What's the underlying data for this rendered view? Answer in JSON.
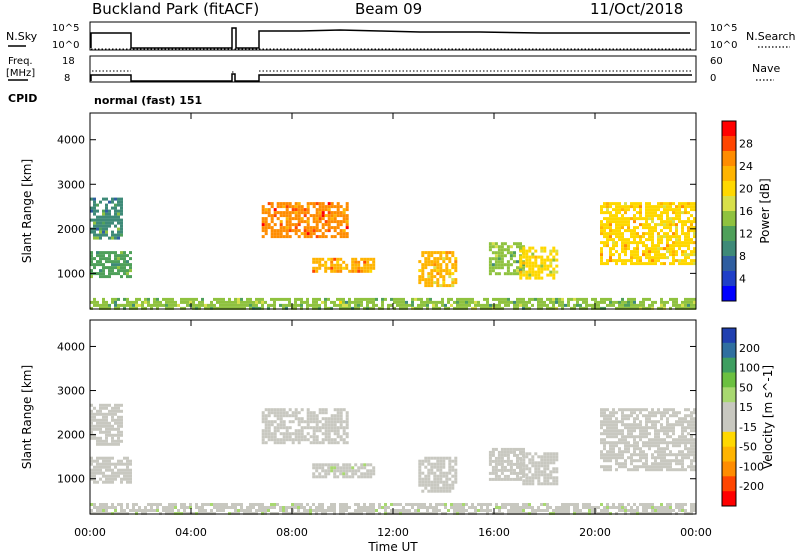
{
  "header": {
    "station": "Buckland Park (fitACF)",
    "beam": "Beam 09",
    "date": "11/Oct/2018"
  },
  "top_panels": {
    "nsky_label": "N.Sky",
    "nsky_ticks": [
      "10^5",
      "10^0"
    ],
    "nsearch_label": "N.Search",
    "nsearch_ticks": [
      "10^5",
      "10^0"
    ],
    "freq_label": "Freq.",
    "freq_unit": "[MHz]",
    "freq_ticks": [
      "18",
      "8"
    ],
    "nave_label": "Nave",
    "nave_ticks": [
      "60",
      "0"
    ],
    "cpid_label": "CPID",
    "cpid_text": "normal (fast) 151"
  },
  "chart_data": [
    {
      "type": "heatmap",
      "parameter": "Power",
      "ylabel": "Slant Range [km]",
      "colorbar_label": "Power [dB]",
      "colorbar_ticks": [
        "28",
        "24",
        "20",
        "16",
        "12",
        "8",
        "4"
      ],
      "colorbar_colors": [
        "#ff0000",
        "#ff4500",
        "#ff8c00",
        "#ffb400",
        "#ffd800",
        "#d8e04a",
        "#8fc23f",
        "#4fa05a",
        "#3e8a78",
        "#2f5ea0",
        "#1f3fc8",
        "#0000ff"
      ],
      "y_ticks": [
        "4000",
        "3000",
        "2000",
        "1000"
      ],
      "ylim": [
        200,
        4600
      ],
      "xlim": [
        0,
        24
      ],
      "gaps_hours": [
        [
          1.6,
          5.7
        ],
        [
          5.9,
          6.8
        ]
      ],
      "echo_regions": [
        {
          "t0": 0.0,
          "t1": 1.6,
          "r0": 900,
          "r1": 1500,
          "level": 11
        },
        {
          "t0": 0.0,
          "t1": 1.3,
          "r0": 1800,
          "r1": 2700,
          "level": 10
        },
        {
          "t0": 6.8,
          "t1": 10.2,
          "r0": 1800,
          "r1": 2600,
          "level": 27
        },
        {
          "t0": 8.8,
          "t1": 11.2,
          "r0": 1050,
          "r1": 1350,
          "level": 24
        },
        {
          "t0": 13.0,
          "t1": 14.5,
          "r0": 700,
          "r1": 1500,
          "level": 22
        },
        {
          "t0": 15.8,
          "t1": 17.2,
          "r0": 1000,
          "r1": 1700,
          "level": 14
        },
        {
          "t0": 17.0,
          "t1": 18.5,
          "r0": 900,
          "r1": 1600,
          "level": 19
        },
        {
          "t0": 20.2,
          "t1": 24.0,
          "r0": 1200,
          "r1": 2600,
          "level": 21
        },
        {
          "t0": 0.0,
          "t1": 24.0,
          "r0": 200,
          "r1": 450,
          "level": 14
        }
      ]
    },
    {
      "type": "heatmap",
      "parameter": "Velocity",
      "ylabel": "Slant Range [km]",
      "colorbar_label": "Velocity [m s^-1]",
      "colorbar_ticks": [
        "200",
        "100",
        "50",
        "15",
        "-15",
        "-50",
        "-100",
        "-200"
      ],
      "colorbar_colors": [
        "#2040b0",
        "#2f6fa0",
        "#3e9e60",
        "#6bc040",
        "#a8d870",
        "#c8c8c0",
        "#c8c8c0",
        "#ffd800",
        "#ffb400",
        "#ff8c00",
        "#ff4500",
        "#ff0000"
      ],
      "y_ticks": [
        "4000",
        "3000",
        "2000",
        "1000"
      ],
      "x_ticks": [
        "00:00",
        "04:00",
        "08:00",
        "12:00",
        "16:00",
        "20:00",
        "00:00"
      ],
      "xlabel": "Time UT",
      "ylim": [
        200,
        4600
      ],
      "xlim": [
        0,
        24
      ],
      "echo_regions": [
        {
          "t0": 0.0,
          "t1": 1.6,
          "r0": 900,
          "r1": 1500,
          "velocity": 0
        },
        {
          "t0": 0.0,
          "t1": 1.3,
          "r0": 1800,
          "r1": 2700,
          "velocity": 0
        },
        {
          "t0": 6.8,
          "t1": 10.2,
          "r0": 1800,
          "r1": 2600,
          "velocity": 5
        },
        {
          "t0": 8.8,
          "t1": 11.2,
          "r0": 1050,
          "r1": 1350,
          "velocity": 40
        },
        {
          "t0": 13.0,
          "t1": 14.5,
          "r0": 700,
          "r1": 1500,
          "velocity": 0
        },
        {
          "t0": 15.8,
          "t1": 17.2,
          "r0": 1000,
          "r1": 1700,
          "velocity": 0
        },
        {
          "t0": 17.0,
          "t1": 18.5,
          "r0": 900,
          "r1": 1600,
          "velocity": 0
        },
        {
          "t0": 20.2,
          "t1": 24.0,
          "r0": 1200,
          "r1": 2600,
          "velocity": 0
        },
        {
          "t0": 0.0,
          "t1": 24.0,
          "r0": 200,
          "r1": 450,
          "velocity": 40
        }
      ]
    }
  ]
}
